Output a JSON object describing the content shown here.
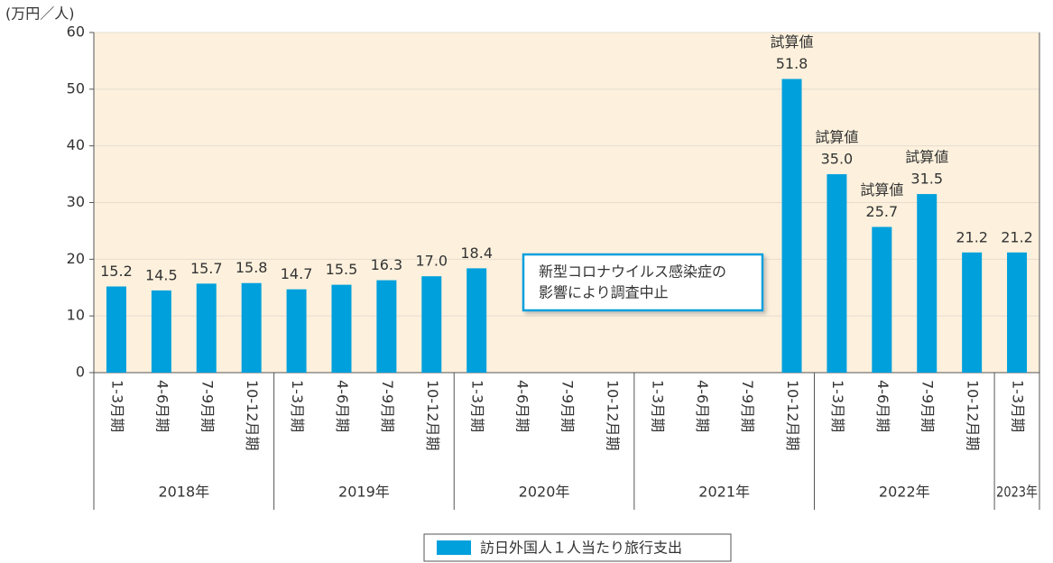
{
  "chart_data": {
    "type": "bar",
    "y_axis_label": "(万円／人)",
    "categories": [
      {
        "quarter": "1-3月期",
        "year": "2018年"
      },
      {
        "quarter": "4-6月期",
        "year": "2018年"
      },
      {
        "quarter": "7-9月期",
        "year": "2018年"
      },
      {
        "quarter": "10-12月期",
        "year": "2018年"
      },
      {
        "quarter": "1-3月期",
        "year": "2019年"
      },
      {
        "quarter": "4-6月期",
        "year": "2019年"
      },
      {
        "quarter": "7-9月期",
        "year": "2019年"
      },
      {
        "quarter": "10-12月期",
        "year": "2019年"
      },
      {
        "quarter": "1-3月期",
        "year": "2020年"
      },
      {
        "quarter": "4-6月期",
        "year": "2020年"
      },
      {
        "quarter": "7-9月期",
        "year": "2020年"
      },
      {
        "quarter": "10-12月期",
        "year": "2020年"
      },
      {
        "quarter": "1-3月期",
        "year": "2021年"
      },
      {
        "quarter": "4-6月期",
        "year": "2021年"
      },
      {
        "quarter": "7-9月期",
        "year": "2021年"
      },
      {
        "quarter": "10-12月期",
        "year": "2021年"
      },
      {
        "quarter": "1-3月期",
        "year": "2022年"
      },
      {
        "quarter": "4-6月期",
        "year": "2022年"
      },
      {
        "quarter": "7-9月期",
        "year": "2022年"
      },
      {
        "quarter": "10-12月期",
        "year": "2022年"
      },
      {
        "quarter": "1-3月期",
        "year": "2023年"
      }
    ],
    "series": [
      {
        "name": "訪日外国人１人当たり旅行支出",
        "color": "#00a0dc",
        "values": [
          15.2,
          14.5,
          15.7,
          15.8,
          14.7,
          15.5,
          16.3,
          17.0,
          18.4,
          null,
          null,
          null,
          null,
          null,
          null,
          51.8,
          35.0,
          25.7,
          31.5,
          21.2,
          21.2
        ],
        "value_labels": [
          "15.2",
          "14.5",
          "15.7",
          "15.8",
          "14.7",
          "15.5",
          "16.3",
          "17.0",
          "18.4",
          null,
          null,
          null,
          null,
          null,
          null,
          "51.8",
          "35.0",
          "25.7",
          "31.5",
          "21.2",
          "21.2"
        ],
        "notes": [
          null,
          null,
          null,
          null,
          null,
          null,
          null,
          null,
          null,
          null,
          null,
          null,
          null,
          null,
          null,
          "試算値",
          "試算値",
          "試算値",
          "試算値",
          null,
          null
        ]
      }
    ],
    "annotation": [
      "新型コロナウイルス感染症の",
      "影響により調査中止"
    ],
    "ylim": [
      0,
      60
    ],
    "yticks": [
      0,
      10,
      20,
      30,
      40,
      50,
      60
    ],
    "grid": true,
    "plot_background": "#fdf1dd"
  }
}
